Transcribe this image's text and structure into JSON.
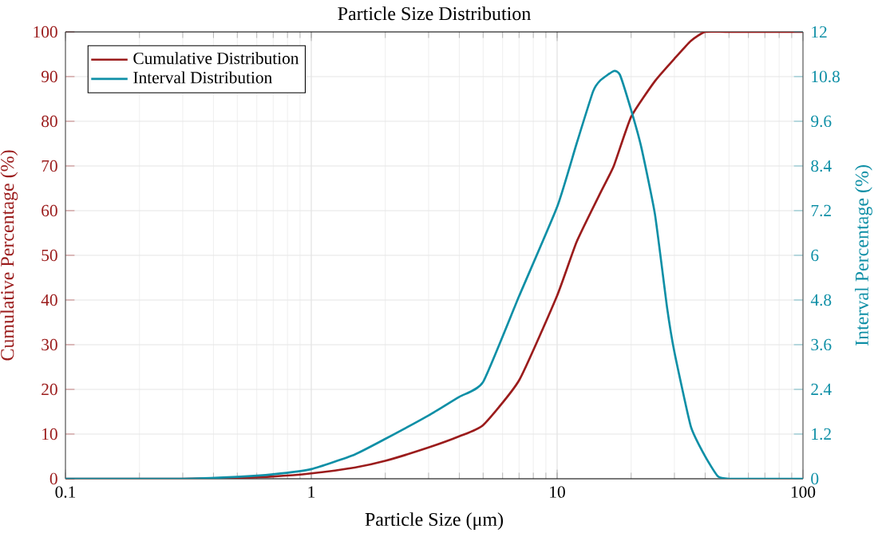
{
  "chart_data": {
    "type": "line",
    "title": "Particle Size Distribution",
    "xlabel": "Particle Size (μm)",
    "ylabel": "Cumulative Percentage (%)",
    "y2label": "Interval Percentage (%)",
    "log": "x",
    "grid": true,
    "legend": "top left",
    "line_style": "solid",
    "marker": "none",
    "xlim": [
      0.1,
      100
    ],
    "xticks": [
      0.1,
      1,
      10,
      100
    ],
    "ylim": [
      0,
      100
    ],
    "yticks": [
      0,
      10,
      20,
      30,
      40,
      50,
      60,
      70,
      80,
      90,
      100
    ],
    "y2lim": [
      0,
      12
    ],
    "y2ticks": [
      0,
      1.2,
      2.4,
      3.6,
      4.8,
      6,
      7.2,
      8.4,
      9.6,
      10.8,
      12
    ],
    "series": [
      {
        "name": "Cumulative Distribution",
        "color": "#9b1c1c",
        "x": [
          0.1,
          0.3,
          0.5,
          0.7,
          1,
          1.5,
          2,
          3,
          4,
          5,
          7,
          10,
          12,
          15,
          17,
          20,
          25,
          30,
          35,
          40,
          50,
          100
        ],
        "values": [
          0,
          0,
          0.2,
          0.5,
          1.2,
          2.5,
          4,
          7,
          9.5,
          12,
          22,
          41,
          53,
          64,
          70,
          81,
          89,
          94,
          98,
          100,
          100,
          100
        ]
      },
      {
        "name": "Interval Distribution",
        "color": "#0e8fa6",
        "axis": "y2",
        "x": [
          0.1,
          0.3,
          0.5,
          0.7,
          1,
          1.5,
          2,
          3,
          4,
          5,
          7,
          10,
          12,
          14,
          15,
          17,
          18,
          20,
          22,
          25,
          28,
          30,
          35,
          40,
          45,
          50,
          100
        ],
        "values": [
          0,
          0,
          0.05,
          0.12,
          0.26,
          0.65,
          1.07,
          1.7,
          2.2,
          2.6,
          4.9,
          7.3,
          9.0,
          10.4,
          10.7,
          10.95,
          10.85,
          9.9,
          8.9,
          7.1,
          4.6,
          3.4,
          1.4,
          0.6,
          0.07,
          0,
          0
        ]
      }
    ]
  }
}
